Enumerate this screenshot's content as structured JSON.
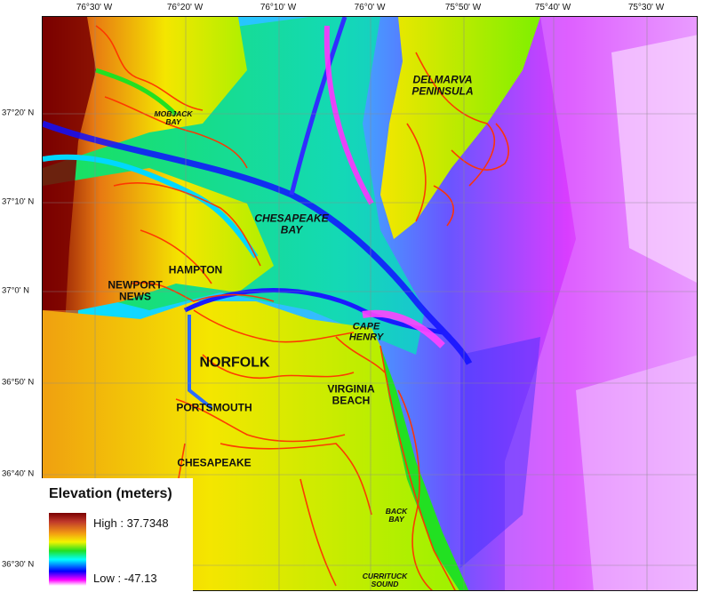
{
  "map": {
    "lon_ticks": [
      "76°30' W",
      "76°20' W",
      "76°10' W",
      "76°0' W",
      "75°50' W",
      "75°40' W",
      "75°30' W"
    ],
    "lat_ticks": [
      "37°20' N",
      "37°10' N",
      "37°0' N",
      "36°50' N",
      "36°40' N",
      "36°30' N"
    ],
    "places": {
      "delmarva": "DELMARVA\nPENINSULA",
      "mobjack": "MOBJACK\nBAY",
      "chesapeake_bay": "CHESAPEAKE\nBAY",
      "hampton": "HAMPTON",
      "newport_news": "NEWPORT\nNEWS",
      "cape_henry": "CAPE\nHENRY",
      "norfolk": "NORFOLK",
      "virginia_beach": "VIRGINIA\nBEACH",
      "portsmouth": "PORTSMOUTH",
      "chesapeake": "CHESAPEAKE",
      "back_bay": "BACK\nBAY",
      "currituck": "CURRITUCK\nSOUND"
    },
    "colors": {
      "high": "#7a0000",
      "land_mid": "#f4e600",
      "shore": "#ff3300",
      "shallow": "#22e022",
      "mid_water": "#00e5ff",
      "deep": "#0000ff",
      "deepest": "#ff00ff",
      "low_white": "#ffffff"
    }
  },
  "legend": {
    "title": "Elevation (meters)",
    "high_label": "High : 37.7348",
    "low_label": "Low : -47.13"
  }
}
